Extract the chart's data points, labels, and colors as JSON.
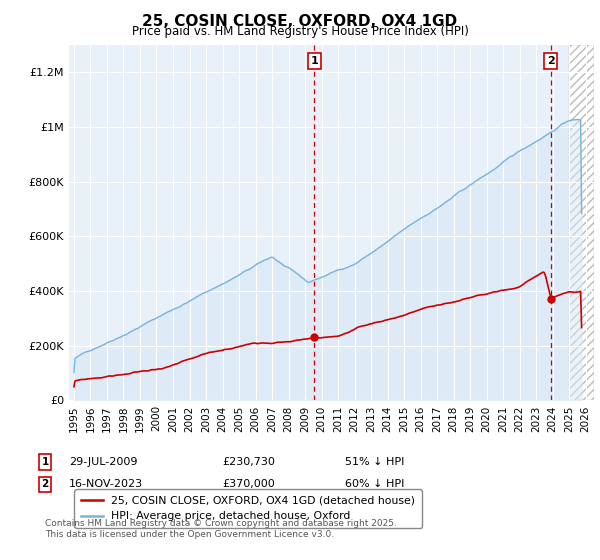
{
  "title": "25, COSIN CLOSE, OXFORD, OX4 1GD",
  "subtitle": "Price paid vs. HM Land Registry's House Price Index (HPI)",
  "ylabel_ticks": [
    "£0",
    "£200K",
    "£400K",
    "£600K",
    "£800K",
    "£1M",
    "£1.2M"
  ],
  "ytick_values": [
    0,
    200000,
    400000,
    600000,
    800000,
    1000000,
    1200000
  ],
  "ylim": [
    0,
    1300000
  ],
  "xlim_start": 1994.7,
  "xlim_end": 2026.5,
  "hpi_color": "#7ab3d8",
  "hpi_fill_color": "#d6e8f5",
  "price_color": "#cc0000",
  "vline_color": "#cc0000",
  "marker1_date": 2009.57,
  "marker2_date": 2023.88,
  "marker1_price": 230730,
  "marker2_price": 370000,
  "legend_label_red": "25, COSIN CLOSE, OXFORD, OX4 1GD (detached house)",
  "legend_label_blue": "HPI: Average price, detached house, Oxford",
  "footnote": "Contains HM Land Registry data © Crown copyright and database right 2025.\nThis data is licensed under the Open Government Licence v3.0.",
  "bg_color": "#e8f0fa",
  "xticks": [
    1995,
    1996,
    1997,
    1998,
    1999,
    2000,
    2001,
    2002,
    2003,
    2004,
    2005,
    2006,
    2007,
    2008,
    2009,
    2010,
    2011,
    2012,
    2013,
    2014,
    2015,
    2016,
    2017,
    2018,
    2019,
    2020,
    2021,
    2022,
    2023,
    2024,
    2025,
    2026
  ]
}
